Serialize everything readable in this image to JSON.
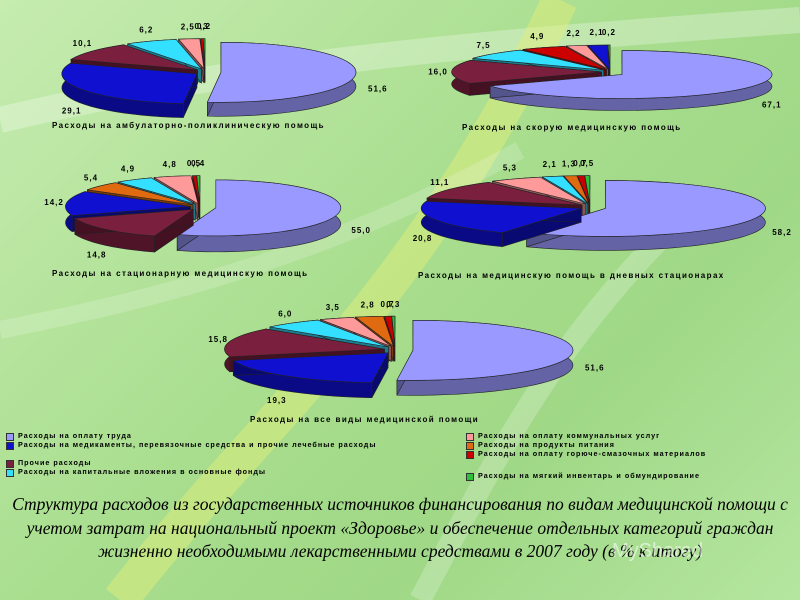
{
  "colors": {
    "wages": "#9999ff",
    "medicines": "#1010d0",
    "other": "#7a1f3d",
    "capital": "#33e0ff",
    "utilities": "#ff9a9a",
    "food": "#e06a10",
    "fuel": "#cc0000",
    "soft_inventory": "#2fbf3f"
  },
  "legend": [
    {
      "key": "wages",
      "label": "Расходы на оплату труда"
    },
    {
      "key": "medicines",
      "label": "Расходы на медикаменты, перевязочные средства и прочие лечебные расходы"
    },
    {
      "key": "other",
      "label": "Прочие расходы"
    },
    {
      "key": "capital",
      "label": "Расходы на капитальные вложения в основные фонды"
    },
    {
      "key": "utilities",
      "label": "Расходы на оплату коммунальных услуг"
    },
    {
      "key": "food",
      "label": "Расходы на продукты питания"
    },
    {
      "key": "fuel",
      "label": "Расходы на оплату горюче-смазочных материалов"
    },
    {
      "key": "soft_inventory",
      "label": "Расходы на мягкий инвентарь и обмундирование"
    }
  ],
  "chart_data": [
    {
      "type": "pie",
      "title": "Расходы на амбулаторно-поликлиническую помощь",
      "labels": [
        "51,6",
        "29,1",
        "10,1",
        "6,2",
        "2,5",
        "0,3",
        "0,2"
      ],
      "series": [
        {
          "values": [
            51.6,
            29.1,
            10.1,
            6.2,
            2.5,
            0.3,
            0.2
          ]
        }
      ],
      "keys": [
        "wages",
        "medicines",
        "other",
        "capital",
        "utilities",
        "fuel",
        "soft_inventory"
      ]
    },
    {
      "type": "pie",
      "title": "Расходы на скорую медицинскую помощь",
      "labels": [
        "67,1",
        "16,0",
        "7,5",
        "4,9",
        "2,2",
        "2,1",
        "0,2"
      ],
      "series": [
        {
          "values": [
            67.1,
            16.0,
            7.5,
            4.9,
            2.2,
            2.1,
            0.2
          ]
        }
      ],
      "keys": [
        "wages",
        "other",
        "capital",
        "fuel",
        "utilities",
        "medicines",
        "soft_inventory"
      ]
    },
    {
      "type": "pie",
      "title": "Расходы на стационарную медицинскую помощь",
      "labels": [
        "55,0",
        "14,8",
        "14,2",
        "5,4",
        "4,9",
        "4,8",
        "0,5",
        "0,4"
      ],
      "series": [
        {
          "values": [
            55.0,
            14.8,
            14.2,
            5.4,
            4.9,
            4.8,
            0.5,
            0.4
          ]
        }
      ],
      "keys": [
        "wages",
        "other",
        "medicines",
        "food",
        "capital",
        "utilities",
        "fuel",
        "soft_inventory"
      ]
    },
    {
      "type": "pie",
      "title": "Расходы на медицинскую помощь в дневных стационарах",
      "labels": [
        "58,2",
        "20,8",
        "11,1",
        "5,3",
        "2,1",
        "1,3",
        "0,7",
        "0,5"
      ],
      "series": [
        {
          "values": [
            58.2,
            20.8,
            11.1,
            5.3,
            2.1,
            1.3,
            0.7,
            0.5
          ]
        }
      ],
      "keys": [
        "wages",
        "medicines",
        "other",
        "utilities",
        "capital",
        "food",
        "fuel",
        "soft_inventory"
      ]
    },
    {
      "type": "pie",
      "title": "Расходы на все виды медицинской помощи",
      "labels": [
        "51,6",
        "19,3",
        "15,8",
        "6,0",
        "3,5",
        "2,8",
        "0,7",
        "0,3"
      ],
      "series": [
        {
          "values": [
            51.6,
            19.3,
            15.8,
            6.0,
            3.5,
            2.8,
            0.7,
            0.3
          ]
        }
      ],
      "keys": [
        "wages",
        "medicines",
        "other",
        "capital",
        "utilities",
        "food",
        "fuel",
        "soft_inventory"
      ]
    }
  ],
  "caption": "Структура расходов из государственных источников финансирования по видам медицинской помощи с учетом затрат на национальный проект «Здоровье» и обеспечение отдельных категорий граждан жизненно необходимыми лекарственными средствами в 2007 году (в % к итогу)",
  "watermark": "MyShared"
}
